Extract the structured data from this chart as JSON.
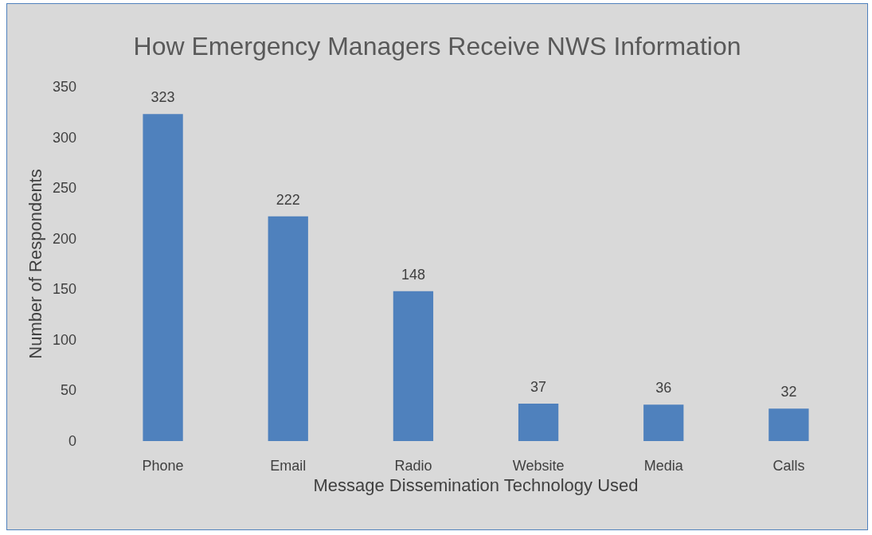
{
  "chart_data": {
    "type": "bar",
    "title": "How Emergency Managers Receive NWS Information",
    "xlabel": "Message Dissemination Technology Used",
    "ylabel": "Number of Respondents",
    "categories": [
      "Phone",
      "Email",
      "Radio",
      "Website",
      "Media",
      "Calls"
    ],
    "values": [
      323,
      222,
      148,
      37,
      36,
      32
    ],
    "color": "#4f81bd",
    "ylim": [
      0,
      350
    ],
    "yticks": [
      0,
      50,
      100,
      150,
      200,
      250,
      300,
      350
    ],
    "grid": false,
    "data_labels": true
  }
}
